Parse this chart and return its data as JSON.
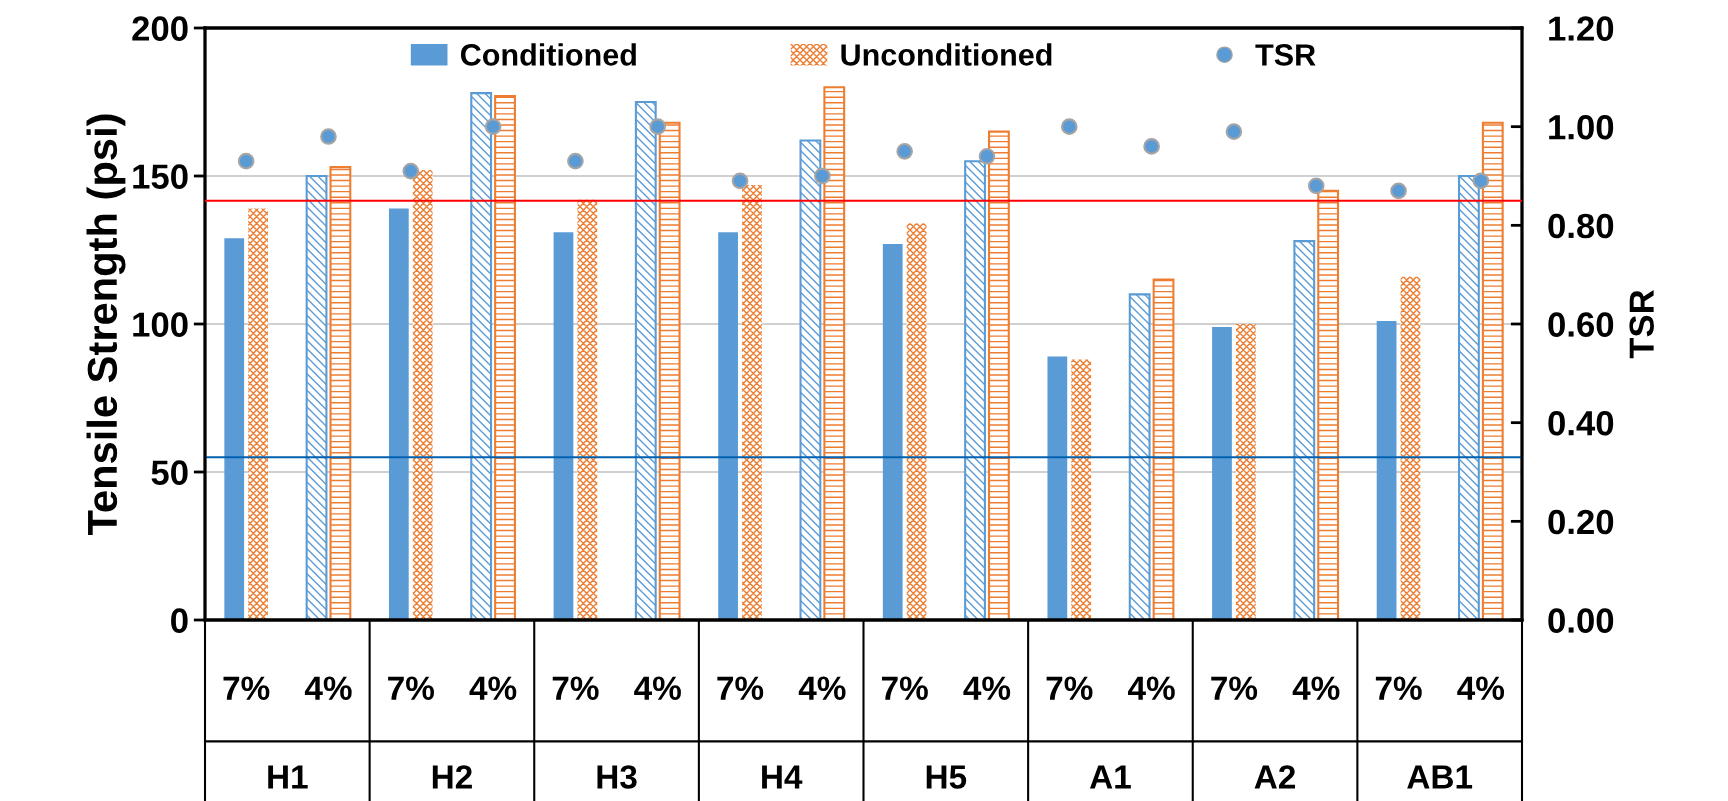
{
  "chart_data": {
    "type": "bar",
    "ylabel": "Tensile Strength (psi)",
    "y2label": "TSR",
    "categories": [
      "7%",
      "4%",
      "7%",
      "4%",
      "7%",
      "4%",
      "7%",
      "4%",
      "7%",
      "4%",
      "7%",
      "4%",
      "7%",
      "4%",
      "7%",
      "4%"
    ],
    "annotations": [
      "H1",
      "H2",
      "H3",
      "H4",
      "H5",
      "A1",
      "A2",
      "AB1"
    ],
    "series": [
      {
        "name": "Conditioned",
        "color": "#5b9bd5",
        "values": [
          129,
          150,
          139,
          178,
          131,
          175,
          131,
          162,
          127,
          155,
          89,
          110,
          99,
          128,
          101,
          150
        ]
      },
      {
        "name": "Unconditioned",
        "color": "#ed7d31",
        "values": [
          139,
          153,
          152,
          177,
          142,
          168,
          147,
          180,
          134,
          165,
          88,
          115,
          100,
          145,
          116,
          168
        ]
      },
      {
        "name": "TSR",
        "type": "scatter",
        "axis": "y2",
        "color": "#5b9bd5",
        "values": [
          0.93,
          0.98,
          0.91,
          1.0,
          0.93,
          1.0,
          0.89,
          0.9,
          0.95,
          0.94,
          1.0,
          0.96,
          0.99,
          0.88,
          0.87,
          0.89
        ]
      }
    ],
    "ylim": [
      0,
      200
    ],
    "yticks": [
      0,
      50,
      100,
      150,
      200
    ],
    "y2lim": [
      0,
      1.2
    ],
    "y2ticks": [
      {
        "value": 0,
        "label": "0.00"
      },
      {
        "value": 0.2,
        "label": "0.20"
      },
      {
        "value": 0.4,
        "label": "0.40"
      },
      {
        "value": 0.6,
        "label": "0.60"
      },
      {
        "value": 0.8,
        "label": "0.80"
      },
      {
        "value": 1.0,
        "label": "1.00"
      },
      {
        "value": 1.2,
        "label": "1.20"
      }
    ],
    "ref_lines": [
      {
        "axis": "y2",
        "value": 0.85,
        "color": "#ff0000"
      },
      {
        "axis": "y",
        "value": 55,
        "color": "#0060b0"
      }
    ],
    "grid": "y",
    "legend": "top",
    "marker": "circle"
  }
}
